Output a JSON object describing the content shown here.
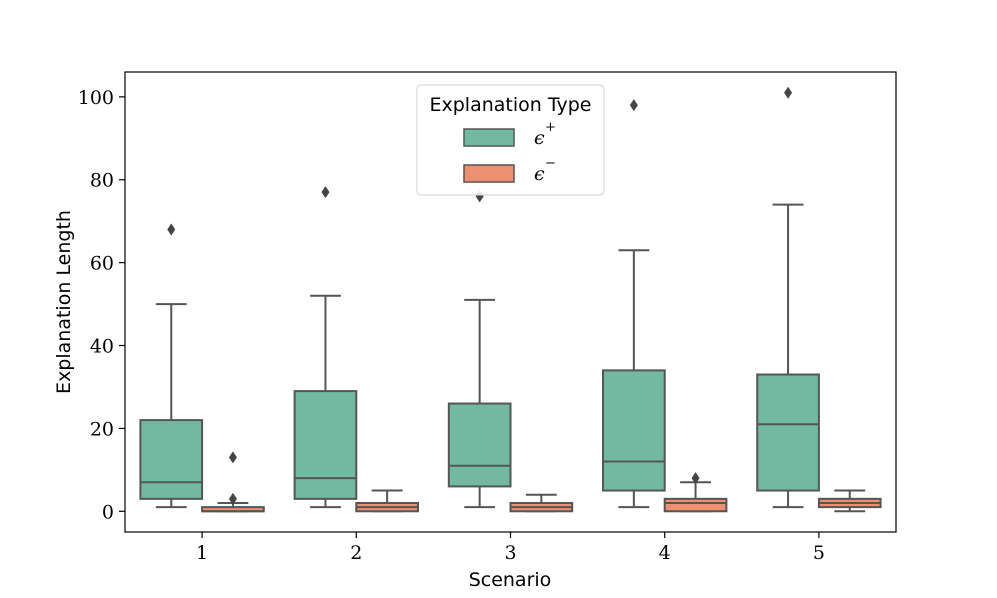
{
  "chart_data": {
    "type": "box",
    "title": "",
    "xlabel": "Scenario",
    "ylabel": "Explanation Length",
    "categories": [
      "1",
      "2",
      "3",
      "4",
      "5"
    ],
    "yticks": [
      "0",
      "20",
      "40",
      "60",
      "80",
      "100"
    ],
    "ylim": [
      -5,
      106
    ],
    "legend": {
      "title": "Explanation Type",
      "position": "top-center",
      "entries": [
        {
          "symbol": "ϵ",
          "sup": "+"
        },
        {
          "symbol": "ϵ",
          "sup": "−"
        }
      ]
    },
    "series": [
      {
        "name": "epsilon-plus",
        "color": "#72b9a2",
        "boxes": [
          {
            "whislo": 1,
            "q1": 3,
            "med": 7,
            "q3": 22,
            "whishi": 50,
            "fliers": [
              68
            ]
          },
          {
            "whislo": 1,
            "q1": 3,
            "med": 8,
            "q3": 29,
            "whishi": 52,
            "fliers": [
              77
            ]
          },
          {
            "whislo": 1,
            "q1": 6,
            "med": 11,
            "q3": 26,
            "whishi": 51,
            "fliers": [
              76
            ]
          },
          {
            "whislo": 1,
            "q1": 5,
            "med": 12,
            "q3": 34,
            "whishi": 63,
            "fliers": [
              98
            ]
          },
          {
            "whislo": 1,
            "q1": 5,
            "med": 21,
            "q3": 33,
            "whishi": 74,
            "fliers": [
              101
            ]
          }
        ]
      },
      {
        "name": "epsilon-minus",
        "color": "#ec9071",
        "boxes": [
          {
            "whislo": 0,
            "q1": 0,
            "med": 0,
            "q3": 1,
            "whishi": 2,
            "fliers": [
              3,
              13
            ]
          },
          {
            "whislo": 0,
            "q1": 0,
            "med": 1,
            "q3": 2,
            "whishi": 5,
            "fliers": []
          },
          {
            "whislo": 0,
            "q1": 0,
            "med": 1,
            "q3": 2,
            "whishi": 4,
            "fliers": []
          },
          {
            "whislo": 0,
            "q1": 0,
            "med": 2,
            "q3": 3,
            "whishi": 7,
            "fliers": [
              8
            ]
          },
          {
            "whislo": 0,
            "q1": 1,
            "med": 2,
            "q3": 3,
            "whishi": 5,
            "fliers": []
          }
        ]
      }
    ]
  }
}
